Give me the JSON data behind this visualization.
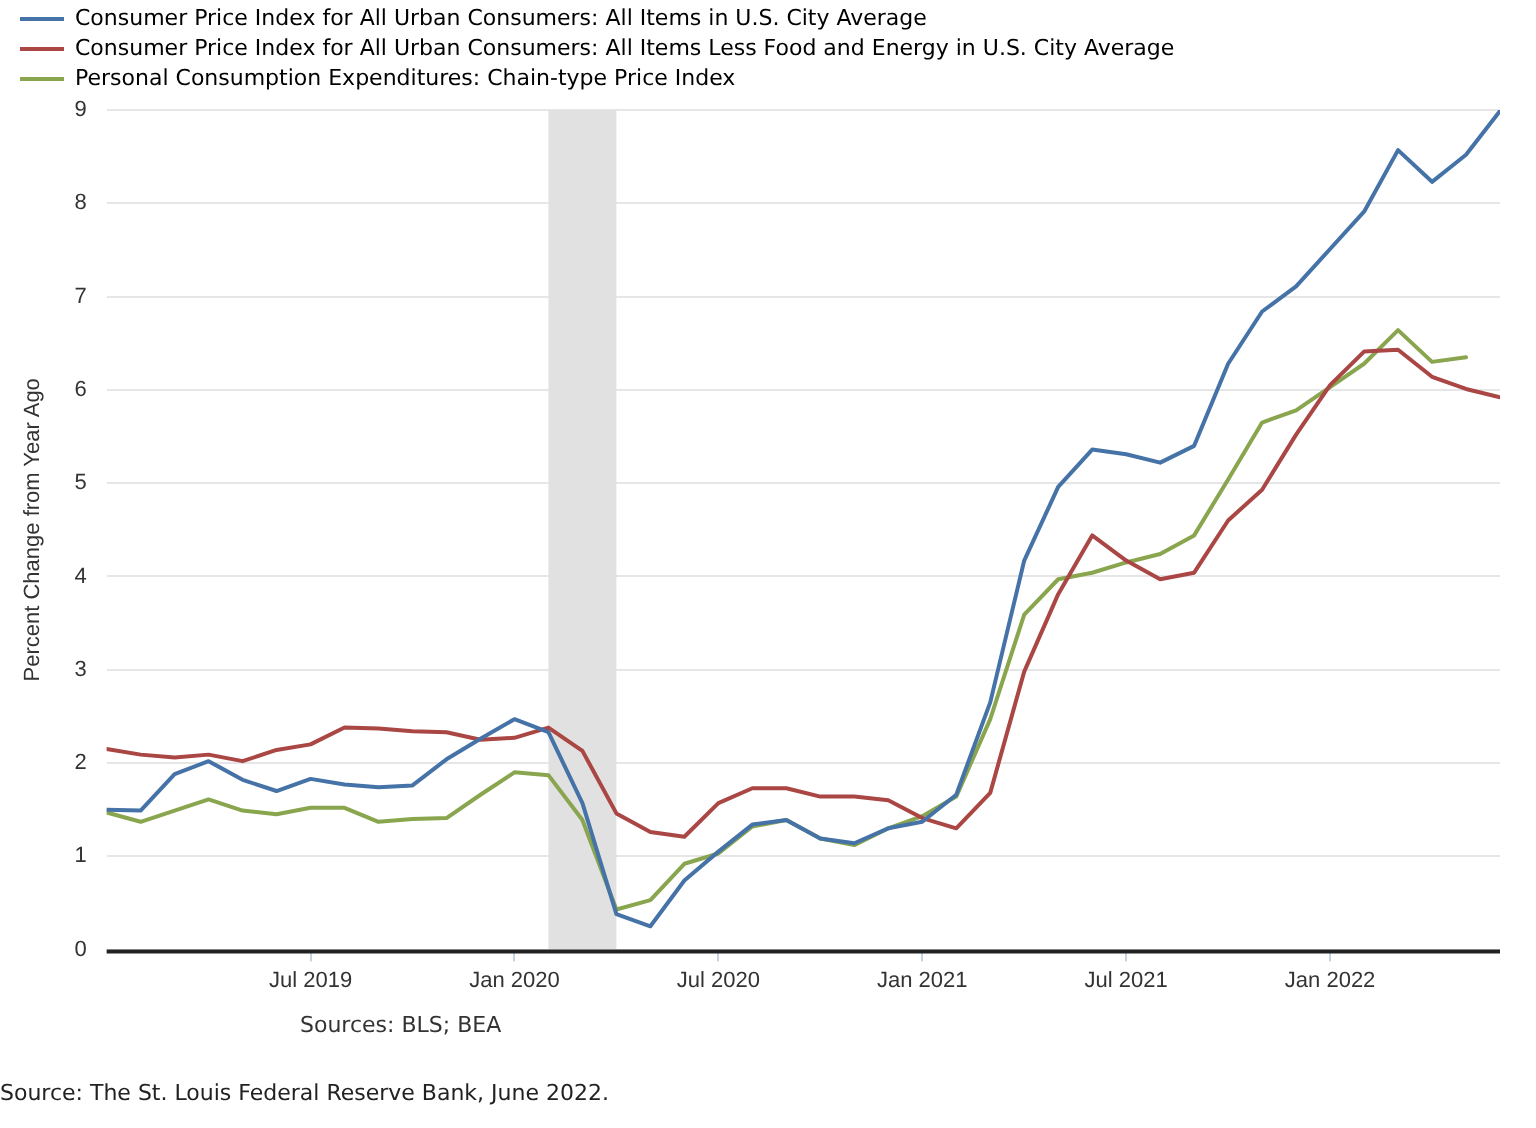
{
  "chart_data": {
    "type": "line",
    "ylabel": "Percent Change from Year Ago",
    "x": [
      "2019-01",
      "2019-02",
      "2019-03",
      "2019-04",
      "2019-05",
      "2019-06",
      "2019-07",
      "2019-08",
      "2019-09",
      "2019-10",
      "2019-11",
      "2019-12",
      "2020-01",
      "2020-02",
      "2020-03",
      "2020-04",
      "2020-05",
      "2020-06",
      "2020-07",
      "2020-08",
      "2020-09",
      "2020-10",
      "2020-11",
      "2020-12",
      "2021-01",
      "2021-02",
      "2021-03",
      "2021-04",
      "2021-05",
      "2021-06",
      "2021-07",
      "2021-08",
      "2021-09",
      "2021-10",
      "2021-11",
      "2021-12",
      "2022-01",
      "2022-02",
      "2022-03",
      "2022-04",
      "2022-05",
      "2022-06"
    ],
    "series": [
      {
        "name": "Consumer Price Index for All Urban Consumers: All Items in U.S. City Average",
        "color": "#4572a7",
        "values": [
          1.5,
          1.49,
          1.88,
          2.02,
          1.82,
          1.7,
          1.83,
          1.77,
          1.74,
          1.76,
          2.04,
          2.26,
          2.47,
          2.33,
          1.57,
          0.38,
          0.25,
          0.74,
          1.05,
          1.34,
          1.39,
          1.19,
          1.14,
          1.3,
          1.37,
          1.66,
          2.65,
          4.17,
          4.96,
          5.36,
          5.31,
          5.22,
          5.4,
          6.28,
          6.84,
          7.11,
          7.51,
          7.91,
          8.57,
          8.23,
          8.52,
          8.99
        ]
      },
      {
        "name": "Consumer Price Index for All Urban Consumers: All Items Less Food and Energy in U.S. City Average",
        "color": "#aa4643",
        "values": [
          2.15,
          2.09,
          2.06,
          2.09,
          2.02,
          2.14,
          2.2,
          2.38,
          2.37,
          2.34,
          2.33,
          2.25,
          2.27,
          2.38,
          2.13,
          1.46,
          1.26,
          1.21,
          1.57,
          1.73,
          1.73,
          1.64,
          1.64,
          1.6,
          1.41,
          1.3,
          1.68,
          2.98,
          3.81,
          4.44,
          4.17,
          3.97,
          4.04,
          4.6,
          4.93,
          5.52,
          6.05,
          6.41,
          6.43,
          6.14,
          6.01,
          5.92
        ]
      },
      {
        "name": "Personal Consumption Expenditures: Chain-type Price Index",
        "color": "#89a54e",
        "values": [
          1.47,
          1.37,
          1.49,
          1.61,
          1.49,
          1.45,
          1.52,
          1.52,
          1.37,
          1.4,
          1.41,
          1.66,
          1.9,
          1.87,
          1.39,
          0.43,
          0.53,
          0.92,
          1.03,
          1.32,
          1.39,
          1.19,
          1.12,
          1.3,
          1.43,
          1.64,
          2.47,
          3.59,
          3.97,
          4.04,
          4.15,
          4.24,
          4.44,
          5.04,
          5.65,
          5.78,
          6.03,
          6.28,
          6.64,
          6.3,
          6.35,
          null
        ]
      }
    ],
    "xlim": [
      "2019-01",
      "2022-06"
    ],
    "xticks": [
      {
        "value": "2019-07",
        "label": "Jul 2019"
      },
      {
        "value": "2020-01",
        "label": "Jan 2020"
      },
      {
        "value": "2020-07",
        "label": "Jul 2020"
      },
      {
        "value": "2021-01",
        "label": "Jan 2021"
      },
      {
        "value": "2021-07",
        "label": "Jul 2021"
      },
      {
        "value": "2022-01",
        "label": "Jan 2022"
      }
    ],
    "ylim": [
      0,
      9
    ],
    "yticks": [
      0,
      1,
      2,
      3,
      4,
      5,
      6,
      7,
      8,
      9
    ],
    "bands": [
      {
        "axis": "x",
        "from": "2020-02",
        "to": "2020-04",
        "color": "#e1e1e1"
      }
    ],
    "grid": "y",
    "legend": "top left",
    "marker": "none",
    "line_style": "solid",
    "annotations": [
      "Sources: BLS; BEA",
      "Source: The St. Louis Federal Reserve Bank, June 2022."
    ]
  }
}
